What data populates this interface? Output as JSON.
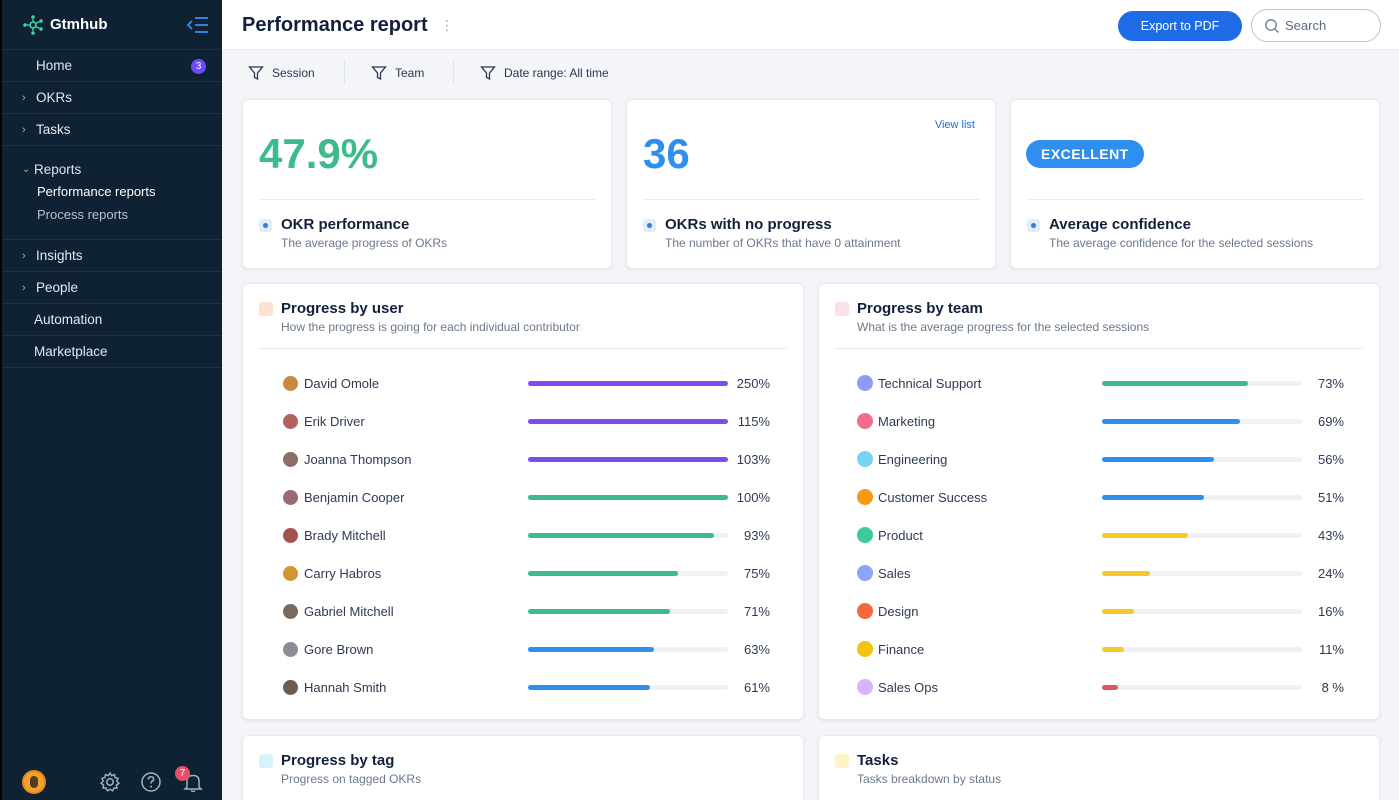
{
  "app": {
    "brand": "Gtmhub"
  },
  "sidebar": {
    "items": [
      {
        "label": "Home",
        "badge": "3"
      },
      {
        "label": "OKRs"
      },
      {
        "label": "Tasks"
      }
    ],
    "reports": {
      "label": "Reports",
      "subs": [
        "Performance reports",
        "Process reports"
      ]
    },
    "items2": [
      {
        "label": "Insights"
      },
      {
        "label": "People"
      },
      {
        "label": "Automation"
      },
      {
        "label": "Marketplace"
      }
    ],
    "notifications_count": "7",
    "icons": [
      "gear-icon",
      "help-icon",
      "bell-icon"
    ]
  },
  "header": {
    "title": "Performance report",
    "export_label": "Export to PDF",
    "search_placeholder": "Search"
  },
  "filters": [
    "Session",
    "Team",
    "Date range: All time"
  ],
  "kpis": {
    "performance": {
      "value": "47.9%",
      "title": "OKR performance",
      "subtitle": "The average progress of OKRs",
      "color": "#3dbb8a"
    },
    "no_progress": {
      "value": "36",
      "title": "OKRs with no progress",
      "subtitle": "The number of OKRs that have 0 attainment",
      "link": "View list",
      "color": "#2f8ff0"
    },
    "confidence": {
      "value": "EXCELLENT",
      "title": "Average confidence",
      "subtitle": "The average confidence for the selected sessions"
    }
  },
  "progress_by_user": {
    "title": "Progress by user",
    "subtitle": "How the progress is going for each individual contributor",
    "rows": [
      {
        "name": "David Omole",
        "value": 250,
        "label": "250%",
        "color": "#7c4dea"
      },
      {
        "name": "Erik Driver",
        "value": 115,
        "label": "115%",
        "color": "#7c4dea"
      },
      {
        "name": "Joanna Thompson",
        "value": 103,
        "label": "103%",
        "color": "#7c4dea"
      },
      {
        "name": "Benjamin Cooper",
        "value": 100,
        "label": "100%",
        "color": "#3dbb8a"
      },
      {
        "name": "Brady Mitchell",
        "value": 93,
        "label": "93%",
        "color": "#3dbb8a"
      },
      {
        "name": "Carry Habros",
        "value": 75,
        "label": "75%",
        "color": "#3dbb8a"
      },
      {
        "name": "Gabriel Mitchell",
        "value": 71,
        "label": "71%",
        "color": "#3dbb8a"
      },
      {
        "name": "Gore Brown",
        "value": 63,
        "label": "63%",
        "color": "#2f8ff0"
      },
      {
        "name": "Hannah Smith",
        "value": 61,
        "label": "61%",
        "color": "#2f8ff0"
      }
    ]
  },
  "progress_by_team": {
    "title": "Progress by team",
    "subtitle": "What is the average progress for the selected sessions",
    "rows": [
      {
        "name": "Technical Support",
        "value": 73,
        "label": "73%",
        "color": "#3dbb8a",
        "dot": "#8d9bf5"
      },
      {
        "name": "Marketing",
        "value": 69,
        "label": "69%",
        "color": "#2f8ff0",
        "dot": "#f0708c"
      },
      {
        "name": "Engineering",
        "value": 56,
        "label": "56%",
        "color": "#2f8ff0",
        "dot": "#74d4f2"
      },
      {
        "name": "Customer Success",
        "value": 51,
        "label": "51%",
        "color": "#2f8ff0",
        "dot": "#f59a12"
      },
      {
        "name": "Product",
        "value": 43,
        "label": "43%",
        "color": "#f6c928",
        "dot": "#3ec99a"
      },
      {
        "name": "Sales",
        "value": 24,
        "label": "24%",
        "color": "#f6c928",
        "dot": "#8aa6f5"
      },
      {
        "name": "Design",
        "value": 16,
        "label": "16%",
        "color": "#f6c928",
        "dot": "#f4683d"
      },
      {
        "name": "Finance",
        "value": 11,
        "label": "11%",
        "color": "#f6c928",
        "dot": "#f2c40f"
      },
      {
        "name": "Sales Ops",
        "value": 8,
        "label": "8 %",
        "color": "#e8506a",
        "dot": "#d7b4f5"
      }
    ]
  },
  "progress_by_tag": {
    "title": "Progress by tag",
    "subtitle": "Progress on tagged OKRs"
  },
  "tasks": {
    "title": "Tasks",
    "subtitle": "Tasks breakdown by status"
  }
}
